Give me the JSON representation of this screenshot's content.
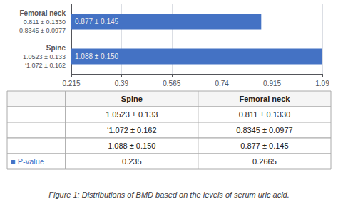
{
  "chart_data": [
    {
      "type": "bar",
      "orientation": "horizontal",
      "title": "Figure 1: Distributions of BMD based on the levels of serum uric acid.",
      "categories": [
        "Femoral neck",
        "Spine"
      ],
      "values": [
        0.877,
        1.088
      ],
      "value_labels": [
        "0.877 ± 0.145",
        "1.088 ± 0.150"
      ],
      "data_labels": true,
      "color": "#4472C4",
      "xlim": [
        0.215,
        1.09
      ],
      "xticks": [
        0.215,
        0.39,
        0.565,
        0.74,
        0.915,
        1.09
      ],
      "grid": true,
      "annotations": [
        {
          "category": "Femoral neck",
          "text": "0.811 ± 0.1330"
        },
        {
          "category": "Femoral neck",
          "text": "0.8345 ± 0.0977"
        },
        {
          "category": "Spine",
          "text": "1.0523 ± 0.133"
        },
        {
          "category": "Spine",
          "text": "‘1.072 ± 0.162"
        }
      ]
    },
    {
      "type": "table",
      "columns": [
        null,
        "Spine",
        "Femoral neck"
      ],
      "rows": [
        [
          null,
          "1.0523 ± 0.133",
          "0.811 ± 0.1330"
        ],
        [
          null,
          "‘1.072 ± 0.162",
          "0.8345 ± 0.0977"
        ],
        [
          null,
          "1.088 ± 0.150",
          "0.877 ± 0.145"
        ],
        [
          "■ P-value",
          "0.235",
          "0.2665"
        ]
      ],
      "color": "#4472C4"
    }
  ]
}
